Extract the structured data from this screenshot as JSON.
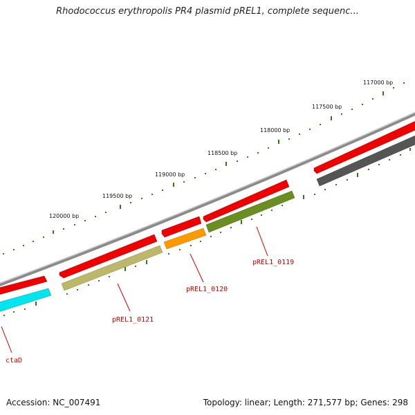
{
  "title": "Rhodococcus erythropolis PR4 plasmid pREL1, complete sequenc...",
  "footer": {
    "accession": "Accession: NC_007491",
    "stats": "Topology: linear; Length: 271,577 bp; Genes: 298"
  },
  "scale": {
    "tick_labels": [
      "117000 bp",
      "117500 bp",
      "118000 bp",
      "118500 bp",
      "119000 bp",
      "119500 bp",
      "120000 bp"
    ]
  },
  "genes": {
    "labels": [
      "pREL1_0119",
      "pREL1_0120",
      "pREL1_0121",
      "ctaD"
    ]
  },
  "colors": {
    "backbone": "#8c8c8c",
    "cds_forward": "#ee0000",
    "tick": "#2e7d10",
    "pREL1_0119": "#6b8e23",
    "pREL1_0120": "#ff9900",
    "pREL1_0121": "#bdb76b",
    "ctaD": "#00e5ee",
    "unlabeled_gene": "#555555",
    "label_text": "#cc0000"
  }
}
